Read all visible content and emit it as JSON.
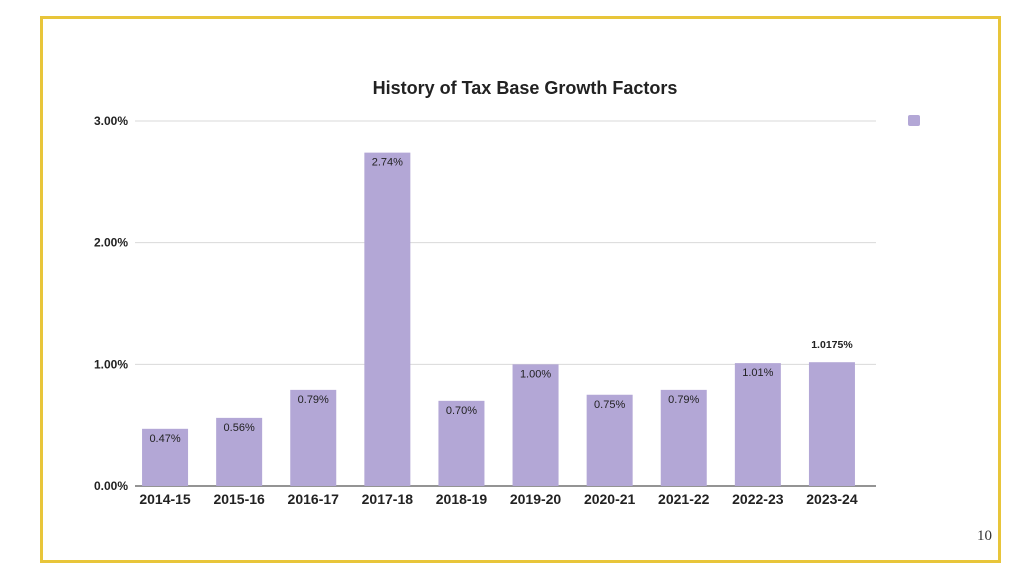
{
  "slide": {
    "page_number": "10"
  },
  "colors": {
    "frame": "#e8c53a",
    "bar": "#b3a7d6",
    "gridline": "#d9d9d9",
    "axis": "#555555"
  },
  "chart_data": {
    "type": "bar",
    "title": "History of Tax Base Growth Factors",
    "xlabel": "",
    "ylabel": "",
    "categories": [
      "2014-15",
      "2015-16",
      "2016-17",
      "2017-18",
      "2018-19",
      "2019-20",
      "2020-21",
      "2021-22",
      "2022-23",
      "2023-24"
    ],
    "values": [
      0.47,
      0.56,
      0.79,
      2.74,
      0.7,
      1.0,
      0.75,
      0.79,
      1.01,
      1.0175
    ],
    "data_labels": [
      "0.47%",
      "0.56%",
      "0.79%",
      "2.74%",
      "0.70%",
      "1.00%",
      "0.75%",
      "0.79%",
      "1.01%",
      "1.0175%"
    ],
    "ylim": [
      0,
      3
    ],
    "yticks": [
      0,
      1,
      2,
      3
    ],
    "ytick_labels": [
      "0.00%",
      "1.00%",
      "2.00%",
      "3.00%"
    ],
    "grid": true,
    "legend": {
      "placement": "top-right",
      "entries": [
        ""
      ]
    }
  }
}
